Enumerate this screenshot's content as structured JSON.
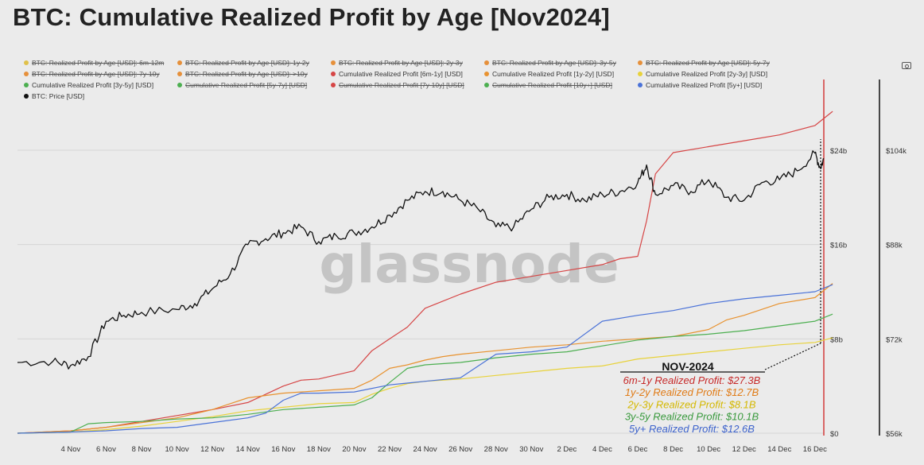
{
  "title": "BTC: Cumulative Realized Profit by Age [Nov2024]",
  "legend": [
    {
      "label": "BTC: Realized Profit by Age [USD]: 6m-12m",
      "color": "#e0c14a",
      "active": false
    },
    {
      "label": "BTC: Realized Profit by Age [USD]: 1y-2y",
      "color": "#e6903b",
      "active": false
    },
    {
      "label": "BTC: Realized Profit by Age [USD]: 2y-3y",
      "color": "#e6903b",
      "active": false
    },
    {
      "label": "BTC: Realized Profit by Age [USD]: 3y-5y",
      "color": "#e6903b",
      "active": false
    },
    {
      "label": "BTC: Realized Profit by Age [USD]: 5y-7y",
      "color": "#e6903b",
      "active": false
    },
    {
      "label": "BTC: Realized Profit by Age [USD]: 7y-10y",
      "color": "#e6903b",
      "active": false
    },
    {
      "label": "BTC: Realized Profit by Age [USD]: >10y",
      "color": "#e6903b",
      "active": false
    },
    {
      "label": "Cumulative Realized Profit [6m-1y] [USD]",
      "color": "#d64545",
      "active": true
    },
    {
      "label": "Cumulative Realized Profit [1y-2y] [USD]",
      "color": "#e8922f",
      "active": true
    },
    {
      "label": "Cumulative Realized Profit [2y-3y] [USD]",
      "color": "#e8d23a",
      "active": true
    },
    {
      "label": "Cumulative Realized Profit [3y-5y] [USD]",
      "color": "#4caf50",
      "active": true
    },
    {
      "label": "Cumulative Realized Profit [5y-7y] [USD]",
      "color": "#4caf50",
      "active": false
    },
    {
      "label": "Cumulative Realized Profit [7y-10y] [USD]",
      "color": "#d64545",
      "active": false
    },
    {
      "label": "Cumulative Realized Profit [10y+] [USD]",
      "color": "#4caf50",
      "active": false
    },
    {
      "label": "Cumulative Realized Profit [5y+] [USD]",
      "color": "#4a72d8",
      "active": true
    },
    {
      "label": "BTC: Price [USD]",
      "color": "#111111",
      "active": true
    }
  ],
  "watermark": "glassnode",
  "annotation": {
    "title": "NOV-2024",
    "lines": [
      {
        "text": "6m-1y Realized Profit: $27.3B",
        "color": "#c62828"
      },
      {
        "text": "1y-2y Realized Profit: $12.7B",
        "color": "#e07b17"
      },
      {
        "text": "2y-3y Realized Profit: $8.1B",
        "color": "#d4b800"
      },
      {
        "text": "3y-5y Realized Profit: $10.1B",
        "color": "#3a9a3e"
      },
      {
        "text": "5y+ Realized Profit: $12.6B",
        "color": "#3d63cc"
      }
    ]
  },
  "chart_data": {
    "type": "line",
    "x_ticks": [
      "4 Nov",
      "6 Nov",
      "8 Nov",
      "10 Nov",
      "12 Nov",
      "14 Nov",
      "16 Nov",
      "18 Nov",
      "20 Nov",
      "22 Nov",
      "24 Nov",
      "26 Nov",
      "28 Nov",
      "30 Nov",
      "2 Dec",
      "4 Dec",
      "6 Dec",
      "8 Dec",
      "10 Dec",
      "12 Dec",
      "14 Dec",
      "16 Dec"
    ],
    "x_range_days": [
      -1,
      44.5
    ],
    "x_tick_days": [
      2,
      4,
      6,
      8,
      10,
      12,
      14,
      16,
      18,
      20,
      22,
      24,
      26,
      28,
      30,
      32,
      34,
      36,
      38,
      40,
      42,
      44
    ],
    "y_left": {
      "ticks": [
        "$0",
        "$8b",
        "$16b",
        "$24b"
      ],
      "values": [
        0,
        8,
        16,
        24
      ],
      "range": [
        0,
        30
      ],
      "unit": "billion USD"
    },
    "y_right": {
      "ticks": [
        "$56k",
        "$72k",
        "$88k",
        "$104k"
      ],
      "values": [
        56,
        72,
        88,
        104
      ],
      "range": [
        56,
        116
      ],
      "unit": "thousand USD"
    },
    "series": [
      {
        "name": "Cumulative Realized Profit [6m-1y] [USD]",
        "axis": "left",
        "color": "#d64545",
        "x": [
          -1,
          2,
          4,
          6,
          8,
          10,
          12,
          14,
          15,
          16,
          18,
          19,
          20,
          21,
          22,
          24,
          26,
          28,
          30,
          32,
          33,
          34,
          34.5,
          35,
          36,
          38,
          40,
          42,
          44,
          45
        ],
        "y": [
          0,
          0.2,
          0.5,
          1.0,
          1.5,
          2.0,
          2.6,
          4.0,
          4.5,
          4.6,
          5.3,
          7.0,
          8.0,
          9.0,
          10.6,
          11.8,
          12.8,
          13.3,
          13.8,
          14.3,
          14.8,
          15.0,
          18.0,
          22.0,
          23.8,
          24.3,
          24.8,
          25.3,
          26.1,
          27.3
        ]
      },
      {
        "name": "Cumulative Realized Profit [1y-2y] [USD]",
        "axis": "left",
        "color": "#e8922f",
        "x": [
          -1,
          2,
          4,
          6,
          8,
          10,
          12,
          14,
          16,
          18,
          19,
          20,
          21,
          22,
          23,
          24,
          26,
          28,
          30,
          32,
          34,
          36,
          38,
          39,
          40,
          42,
          44,
          45
        ],
        "y": [
          0,
          0.2,
          0.5,
          0.9,
          1.3,
          2.0,
          3.0,
          3.4,
          3.6,
          3.8,
          4.5,
          5.5,
          5.8,
          6.2,
          6.5,
          6.7,
          7.0,
          7.3,
          7.5,
          7.8,
          8.0,
          8.2,
          8.8,
          9.6,
          10.0,
          11.0,
          11.5,
          12.7
        ]
      },
      {
        "name": "Cumulative Realized Profit [2y-3y] [USD]",
        "axis": "left",
        "color": "#e8d23a",
        "x": [
          -1,
          2,
          4,
          6,
          8,
          10,
          12,
          14,
          16,
          18,
          19,
          20,
          21,
          22,
          24,
          26,
          28,
          30,
          32,
          34,
          36,
          38,
          40,
          42,
          44,
          45
        ],
        "y": [
          0,
          0.1,
          0.3,
          0.6,
          1.0,
          1.4,
          1.9,
          2.2,
          2.5,
          2.6,
          3.3,
          3.8,
          4.2,
          4.4,
          4.6,
          4.9,
          5.2,
          5.5,
          5.7,
          6.3,
          6.6,
          6.9,
          7.2,
          7.5,
          7.7,
          8.1
        ]
      },
      {
        "name": "Cumulative Realized Profit [3y-5y] [USD]",
        "axis": "left",
        "color": "#4caf50",
        "x": [
          -1,
          2,
          3,
          4,
          6,
          8,
          10,
          12,
          14,
          16,
          18,
          19,
          20,
          21,
          22,
          24,
          26,
          28,
          30,
          32,
          34,
          36,
          38,
          40,
          42,
          44,
          45
        ],
        "y": [
          0,
          0.1,
          0.8,
          0.9,
          1.0,
          1.2,
          1.3,
          1.6,
          2.0,
          2.2,
          2.4,
          3.0,
          4.3,
          5.5,
          5.8,
          6.0,
          6.4,
          6.7,
          6.9,
          7.4,
          7.9,
          8.2,
          8.4,
          8.7,
          9.1,
          9.5,
          10.1
        ]
      },
      {
        "name": "Cumulative Realized Profit [5y+] [USD]",
        "axis": "left",
        "color": "#4a72d8",
        "x": [
          -1,
          2,
          4,
          6,
          8,
          10,
          12,
          13,
          14,
          15,
          16,
          18,
          20,
          22,
          24,
          26,
          28,
          30,
          32,
          34,
          36,
          38,
          40,
          42,
          44,
          45
        ],
        "y": [
          0,
          0.1,
          0.2,
          0.4,
          0.5,
          0.9,
          1.3,
          1.7,
          2.8,
          3.4,
          3.4,
          3.5,
          4.1,
          4.4,
          4.7,
          6.7,
          6.9,
          7.3,
          9.5,
          10.0,
          10.4,
          11.0,
          11.4,
          11.7,
          12.0,
          12.6
        ]
      },
      {
        "name": "BTC: Price [USD]",
        "axis": "right",
        "color": "#111111",
        "x": [
          -1,
          1,
          2,
          3,
          4,
          5,
          6,
          8,
          9,
          10,
          11,
          12,
          13,
          14,
          15,
          16,
          17,
          18,
          19,
          20,
          21,
          22,
          23,
          24,
          25,
          26,
          27,
          28,
          29,
          30,
          31,
          32,
          33,
          34,
          34.5,
          35,
          36,
          37,
          38,
          39,
          40,
          41,
          42,
          43,
          44,
          44.3,
          44.5
        ],
        "y": [
          68,
          68.2,
          67.5,
          69,
          75,
          76,
          76.5,
          77,
          78,
          80.5,
          83,
          88,
          89,
          90,
          91,
          88.5,
          89.5,
          90,
          91,
          93,
          95.5,
          97,
          97,
          95.5,
          94,
          91,
          91,
          94,
          96,
          96.5,
          95.5,
          96.5,
          97,
          98.5,
          101.5,
          96.5,
          98,
          97,
          99,
          96,
          95.5,
          98.5,
          99,
          100.5,
          103.5,
          101,
          102.5
        ]
      }
    ]
  }
}
